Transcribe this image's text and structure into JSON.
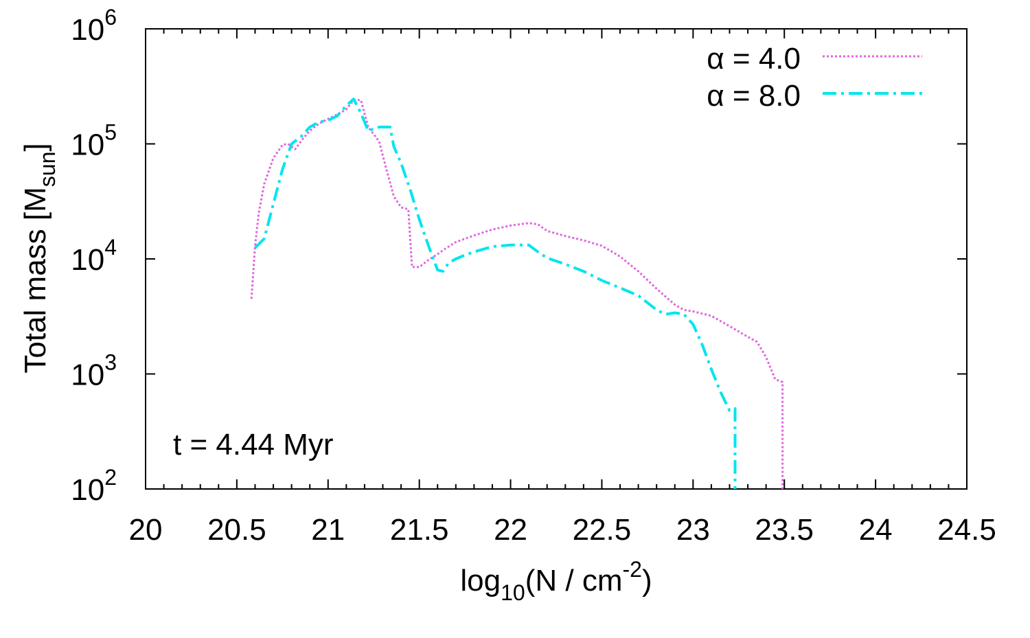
{
  "chart_data": {
    "type": "line",
    "title": "",
    "xlabel": {
      "base": "log",
      "sub": "10",
      "mid": "(N / cm",
      "sup": "-2",
      "end": ")"
    },
    "ylabel": {
      "base": "Total mass [M",
      "sub": "sun",
      "end": "]"
    },
    "xlim": [
      20,
      24.5
    ],
    "ylim": [
      100,
      1000000
    ],
    "yscale": "log",
    "x_ticks": [
      20,
      20.5,
      21,
      21.5,
      22,
      22.5,
      23,
      23.5,
      24,
      24.5
    ],
    "x_tick_labels": [
      "20",
      "20.5",
      "21",
      "21.5",
      "22",
      "22.5",
      "23",
      "23.5",
      "24",
      "24.5"
    ],
    "y_ticks": [
      {
        "value": 100,
        "base": "10",
        "exp": "2"
      },
      {
        "value": 1000,
        "base": "10",
        "exp": "3"
      },
      {
        "value": 10000,
        "base": "10",
        "exp": "4"
      },
      {
        "value": 100000,
        "base": "10",
        "exp": "5"
      },
      {
        "value": 1000000,
        "base": "10",
        "exp": "6"
      }
    ],
    "grid": false,
    "legend_position": "top-right",
    "annotation": "t = 4.44 Myr",
    "series": [
      {
        "name": "α = 4.0",
        "color": "#e066e0",
        "dash": "dotted",
        "x": [
          20.58,
          20.6,
          20.62,
          20.65,
          20.7,
          20.75,
          20.78,
          20.82,
          20.86,
          20.9,
          20.95,
          21.0,
          21.05,
          21.1,
          21.14,
          21.18,
          21.22,
          21.28,
          21.32,
          21.36,
          21.4,
          21.44,
          21.46,
          21.5,
          21.55,
          21.6,
          21.65,
          21.7,
          21.8,
          21.9,
          22.0,
          22.1,
          22.15,
          22.2,
          22.3,
          22.4,
          22.5,
          22.6,
          22.7,
          22.8,
          22.9,
          22.95,
          23.0,
          23.1,
          23.2,
          23.3,
          23.35,
          23.4,
          23.45,
          23.49,
          23.49
        ],
        "y": [
          4500,
          13000,
          25000,
          45000,
          75000,
          98000,
          100000,
          90000,
          110000,
          130000,
          150000,
          165000,
          180000,
          200000,
          240000,
          240000,
          140000,
          105000,
          60000,
          35000,
          28000,
          27000,
          8500,
          8500,
          9800,
          11000,
          12500,
          14000,
          16000,
          18000,
          19500,
          20500,
          20000,
          17500,
          15800,
          14500,
          13000,
          10500,
          7800,
          5500,
          4000,
          3600,
          3500,
          3200,
          2600,
          2100,
          1900,
          1400,
          900,
          850,
          100
        ]
      },
      {
        "name": "α = 8.0",
        "color": "#00e5ee",
        "dash": "dashdot",
        "x": [
          20.6,
          20.65,
          20.7,
          20.75,
          20.8,
          20.85,
          20.9,
          20.95,
          21.0,
          21.05,
          21.1,
          21.14,
          21.18,
          21.22,
          21.28,
          21.34,
          21.36,
          21.4,
          21.45,
          21.5,
          21.55,
          21.6,
          21.63,
          21.66,
          21.7,
          21.75,
          21.8,
          21.9,
          22.0,
          22.1,
          22.15,
          22.2,
          22.3,
          22.4,
          22.5,
          22.6,
          22.7,
          22.8,
          22.85,
          22.9,
          22.95,
          23.0,
          23.05,
          23.1,
          23.15,
          23.2,
          23.23,
          23.23
        ],
        "y": [
          12500,
          15000,
          30000,
          60000,
          100000,
          115000,
          140000,
          155000,
          160000,
          175000,
          215000,
          245000,
          185000,
          130000,
          140000,
          140000,
          95000,
          68000,
          40000,
          22000,
          13000,
          8000,
          7800,
          9200,
          10000,
          10800,
          11500,
          12800,
          13200,
          13200,
          11500,
          10200,
          9000,
          7800,
          6500,
          5600,
          4800,
          3600,
          3300,
          3400,
          3300,
          2700,
          1800,
          1100,
          700,
          480,
          500,
          100
        ]
      }
    ]
  }
}
